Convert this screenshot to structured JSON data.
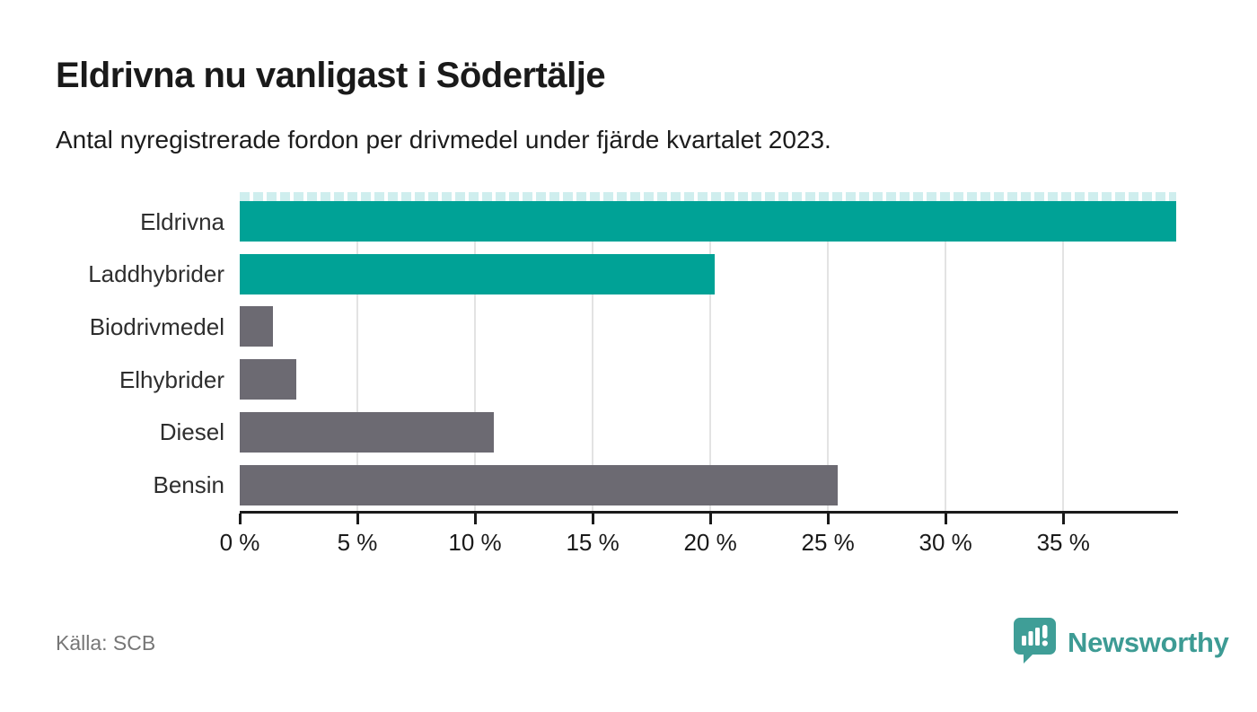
{
  "header": {
    "title": "Eldrivna nu vanligast i Södertälje",
    "subtitle": "Antal nyregistrerade fordon per drivmedel under fjärde kvartalet 2023."
  },
  "footer": {
    "source": "Källa: SCB",
    "brand_name": "Newsworthy",
    "brand_icon": "newsworthy-speech-bubble-barchart-icon"
  },
  "colors": {
    "highlight": "#00a296",
    "default_bar": "#6c6a72",
    "gridline": "#e3e3e3",
    "axis": "#1a1a1a",
    "logo_teal": "#3f9e97",
    "truncation_dash": "#cfeeee"
  },
  "chart_data": {
    "type": "bar",
    "orientation": "horizontal",
    "title": "Eldrivna nu vanligast i Södertälje",
    "subtitle": "Antal nyregistrerade fordon per drivmedel under fjärde kvartalet 2023.",
    "categories": [
      "Eldrivna",
      "Laddhybrider",
      "Biodrivmedel",
      "Elhybrider",
      "Diesel",
      "Bensin"
    ],
    "values": [
      39.8,
      20.2,
      1.4,
      2.4,
      10.8,
      25.4
    ],
    "unit": "%",
    "bar_colors": [
      "#00a296",
      "#00a296",
      "#6c6a72",
      "#6c6a72",
      "#6c6a72",
      "#6c6a72"
    ],
    "x_ticks": [
      0,
      5,
      10,
      15,
      20,
      25,
      30,
      35
    ],
    "x_tick_labels": [
      "0 %",
      "5 %",
      "10 %",
      "15 %",
      "20 %",
      "25 %",
      "30 %",
      "35 %"
    ],
    "xlim": [
      0,
      39.8
    ],
    "xlabel": "",
    "ylabel": "",
    "grid": true,
    "legend_position": "none",
    "top_bar_truncation_dashes": true,
    "source": "Källa: SCB"
  }
}
